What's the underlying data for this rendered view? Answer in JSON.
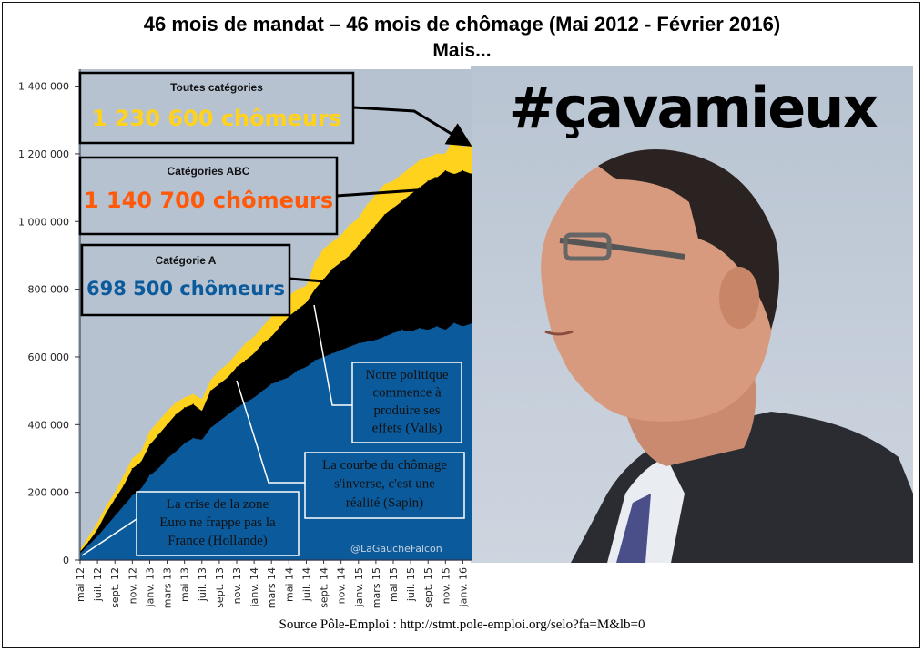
{
  "title_line1": "46 mois de mandat – 46 mois de chômage (Mai 2012 - Février 2016)",
  "title_line2": "Mais...",
  "hashtag": "#çavamieux",
  "source": "Source  Pôle-Emploi  :  http://stmt.pole-emploi.org/selo?fa=M&lb=0",
  "watermark": "@LaGaucheFalcon",
  "colors": {
    "cat_a": "#0b5a9c",
    "cat_abc": "#ff5a0a",
    "all": "#ffd21e",
    "value_all": "#ffd21e",
    "value_abc": "#ff5a0a",
    "value_a": "#0b5a9c"
  },
  "chart_data": {
    "type": "area",
    "stacked": false,
    "yticks": [
      0,
      200000,
      400000,
      600000,
      800000,
      1000000,
      1200000,
      1400000
    ],
    "ytick_labels": [
      "0",
      "200 000",
      "400 000",
      "600 000",
      "800 000",
      "1 000 000",
      "1 200 000",
      "1 400 000"
    ],
    "ylim": [
      0,
      1450000
    ],
    "xtick_labels": [
      "mai 12",
      "juil. 12",
      "sept. 12",
      "nov. 12",
      "janv. 13",
      "mars 13",
      "mai 13",
      "juil. 13",
      "sept. 13",
      "nov. 13",
      "janv. 14",
      "mars 14",
      "mai 14",
      "juil. 14",
      "sept. 14",
      "nov. 14",
      "janv. 15",
      "mars 15",
      "mai 15",
      "juil. 15",
      "sept. 15",
      "nov. 15",
      "janv. 16"
    ],
    "x": [
      "mai 12",
      "juin 12",
      "juil. 12",
      "août 12",
      "sept. 12",
      "oct. 12",
      "nov. 12",
      "déc. 12",
      "janv. 13",
      "févr. 13",
      "mars 13",
      "avr. 13",
      "mai 13",
      "juin 13",
      "juil. 13",
      "août 13",
      "sept. 13",
      "oct. 13",
      "nov. 13",
      "déc. 13",
      "janv. 14",
      "févr. 14",
      "mars 14",
      "avr. 14",
      "mai 14",
      "juin 14",
      "juil. 14",
      "août 14",
      "sept. 14",
      "oct. 14",
      "nov. 14",
      "déc. 14",
      "janv. 15",
      "févr. 15",
      "mars 15",
      "avr. 15",
      "mai 15",
      "juin 15",
      "juil. 15",
      "août 15",
      "sept. 15",
      "oct. 15",
      "nov. 15",
      "déc. 15",
      "janv. 16",
      "févr. 16"
    ],
    "series": [
      {
        "key": "all",
        "values": [
          30000,
          70000,
          110000,
          160000,
          200000,
          250000,
          300000,
          320000,
          380000,
          410000,
          440000,
          465000,
          480000,
          490000,
          475000,
          530000,
          560000,
          580000,
          610000,
          640000,
          660000,
          690000,
          720000,
          750000,
          780000,
          800000,
          810000,
          880000,
          920000,
          940000,
          960000,
          990000,
          1010000,
          1050000,
          1080000,
          1110000,
          1120000,
          1140000,
          1160000,
          1180000,
          1190000,
          1200000,
          1200000,
          1250000,
          1220000,
          1230600
        ]
      },
      {
        "key": "abc",
        "values": [
          25000,
          55000,
          90000,
          140000,
          180000,
          220000,
          270000,
          290000,
          340000,
          370000,
          400000,
          430000,
          450000,
          460000,
          440000,
          500000,
          520000,
          540000,
          570000,
          590000,
          610000,
          640000,
          660000,
          690000,
          720000,
          740000,
          760000,
          800000,
          830000,
          860000,
          880000,
          900000,
          930000,
          960000,
          990000,
          1020000,
          1040000,
          1060000,
          1080000,
          1100000,
          1120000,
          1130000,
          1150000,
          1140000,
          1150000,
          1140700
        ]
      },
      {
        "key": "a",
        "values": [
          20000,
          45000,
          70000,
          100000,
          130000,
          160000,
          190000,
          210000,
          250000,
          270000,
          300000,
          320000,
          345000,
          360000,
          355000,
          390000,
          410000,
          430000,
          450000,
          465000,
          480000,
          500000,
          520000,
          530000,
          540000,
          560000,
          570000,
          590000,
          600000,
          610000,
          620000,
          630000,
          640000,
          645000,
          650000,
          660000,
          670000,
          680000,
          675000,
          685000,
          680000,
          690000,
          680000,
          700000,
          690000,
          698500
        ]
      }
    ],
    "boxes": [
      {
        "key": "all",
        "label": "Toutes catégories",
        "value": "1 230 600 chômeurs"
      },
      {
        "key": "abc",
        "label": "Catégories ABC",
        "value": "1 140 700 chômeurs"
      },
      {
        "key": "a",
        "label": "Catégorie A",
        "value": "698 500 chômeurs"
      }
    ],
    "annotations": [
      {
        "id": "hollande",
        "lines": [
          "La crise de la zone",
          "Euro ne frappe pas la",
          "France (Hollande)"
        ]
      },
      {
        "id": "sapin",
        "lines": [
          "La courbe du chômage",
          "s'inverse, c'est une",
          "réalité (Sapin)"
        ]
      },
      {
        "id": "valls",
        "lines": [
          "Notre politique",
          "commence à",
          "produire ses",
          "effets (Valls)"
        ]
      }
    ]
  }
}
